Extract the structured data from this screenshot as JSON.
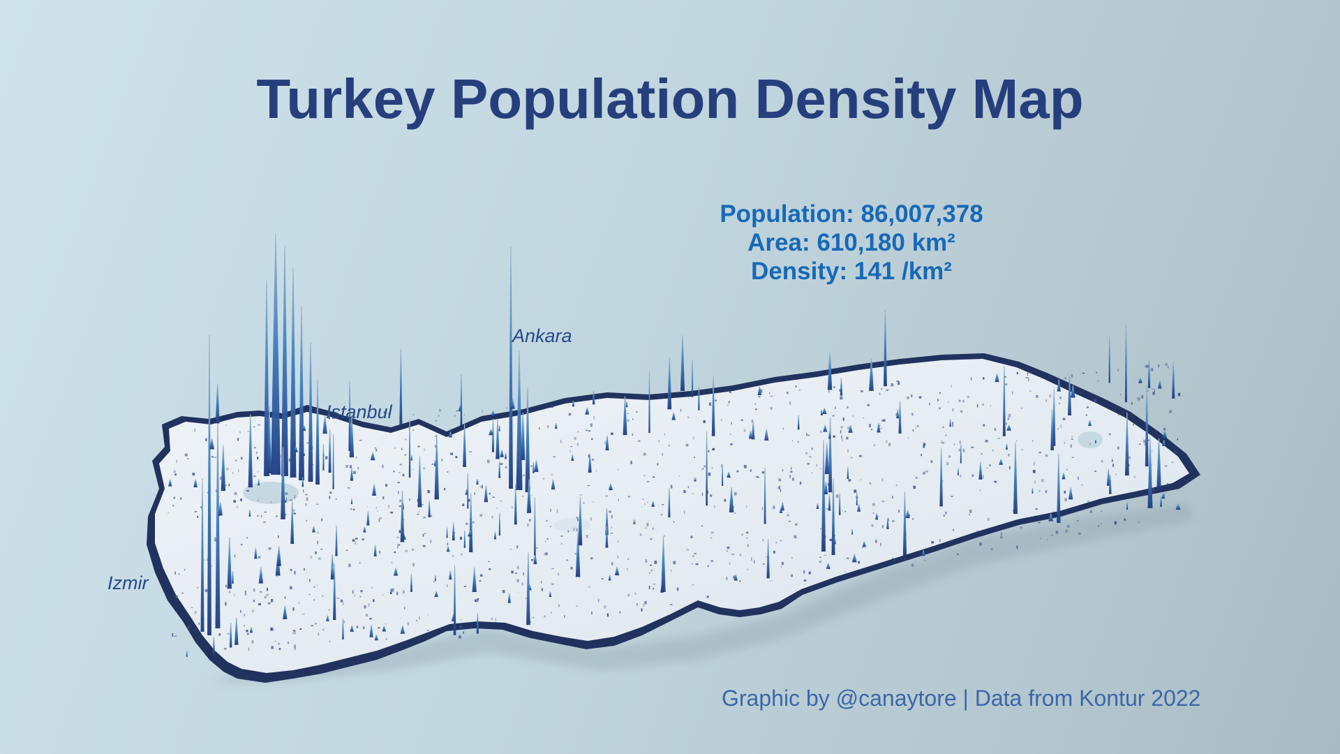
{
  "title": "Turkey Population Density Map",
  "stats": {
    "population": "Population: 86,007,378",
    "area": "Area: 610,180 km²",
    "density": "Density: 141 /km²"
  },
  "cities": [
    {
      "name": "Ankara"
    },
    {
      "name": "Istanbul"
    },
    {
      "name": "Izmir"
    }
  ],
  "credit": "Graphic by @canaytore | Data from Kontur 2022",
  "colors": {
    "title": "#263f7c",
    "stats": "#1769b8",
    "city_label": "#26488a",
    "credit": "#3a68a8",
    "land": "#e6edf2",
    "spike_low": "#1d3a80",
    "spike_high": "#5ea8d8"
  }
}
